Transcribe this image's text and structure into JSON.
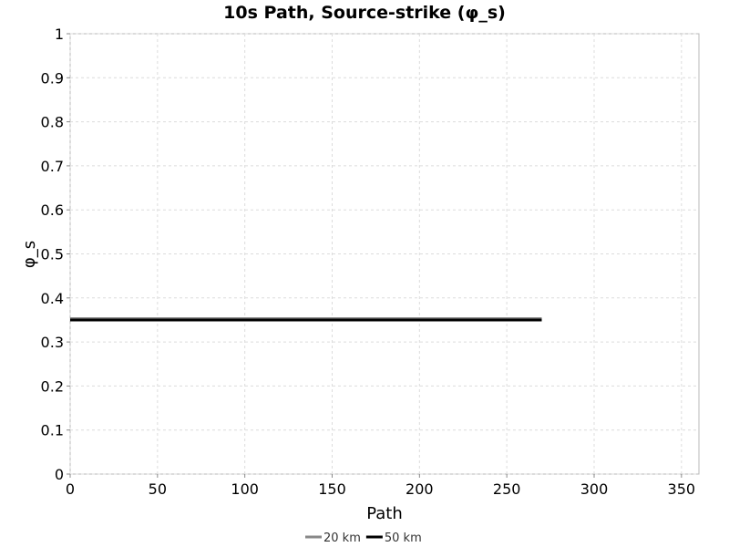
{
  "chart_data": {
    "type": "line",
    "title": "10s Path, Source-strike (φ_s)",
    "xlabel": "Path",
    "ylabel": "φ_s",
    "xlim": [
      0,
      360
    ],
    "ylim": [
      0,
      1
    ],
    "x_ticks": [
      0,
      50,
      100,
      150,
      200,
      250,
      300,
      350
    ],
    "x_tick_labels": [
      "0",
      "50",
      "100",
      "150",
      "200",
      "250",
      "300",
      "350"
    ],
    "y_ticks": [
      0,
      0.1,
      0.2,
      0.3,
      0.4,
      0.5,
      0.6,
      0.7,
      0.8,
      0.9,
      1
    ],
    "y_tick_labels": [
      "0",
      "0.1",
      "0.2",
      "0.3",
      "0.4",
      "0.5",
      "0.6",
      "0.7",
      "0.8",
      "0.9",
      "1"
    ],
    "grid": true,
    "legend_position": "bottom-center",
    "series": [
      {
        "name": "20 km",
        "color": "#888888",
        "x": [
          0,
          270
        ],
        "y": [
          0.353,
          0.353
        ]
      },
      {
        "name": "50 km",
        "color": "#000000",
        "x": [
          0,
          270
        ],
        "y": [
          0.35,
          0.35
        ]
      }
    ]
  }
}
